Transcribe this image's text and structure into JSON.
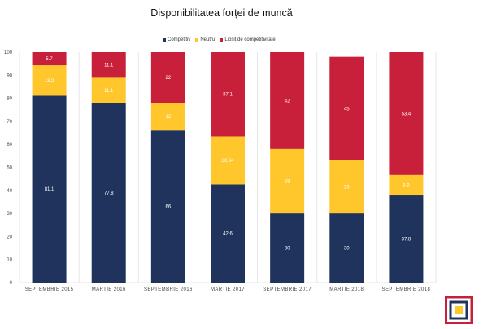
{
  "title": "Disponibilitatea forței de muncă",
  "colors": {
    "competitiv": "#1f335c",
    "neutru": "#ffc72c",
    "lipsit": "#c8203a",
    "grid": "#e6e6e6",
    "axis_text": "#444444",
    "logo_red": "#c8203a",
    "logo_blue": "#1f335c",
    "logo_yellow": "#ffc72c"
  },
  "logo": {
    "icon": "square-bracket-logo-icon"
  },
  "chart_data": {
    "type": "bar",
    "stacked": true,
    "categories": [
      "SEPTEMBRIE 2015",
      "MARTIE 2016",
      "SEPTEMBRIE 2016",
      "MARTIE 2017",
      "SEPTEMBRIE 2017",
      "MARTIE 2018",
      "SEPTEMBRIE 2018"
    ],
    "series": [
      {
        "name": "Competitiv",
        "color": "#1f335c",
        "values": [
          81.1,
          77.8,
          66,
          42.6,
          30,
          30,
          37.8
        ],
        "labels": [
          "81.1",
          "77.8",
          "66",
          "42.6",
          "30",
          "30",
          "37.8"
        ],
        "label_color": "#ffffff"
      },
      {
        "name": "Neutru",
        "color": "#ffc72c",
        "values": [
          13.2,
          11.1,
          12,
          20.84,
          28,
          23,
          8.9
        ],
        "labels": [
          "13.2",
          "11.1",
          "12",
          "20.84",
          "28",
          "23",
          "8.9"
        ],
        "label_color": "#ffffff"
      },
      {
        "name": "Lipsit de competitivitate",
        "color": "#c8203a",
        "values": [
          5.7,
          11.1,
          22,
          37.1,
          42,
          45,
          53.4
        ],
        "labels": [
          "5.7",
          "11.1",
          "22",
          "37.1",
          "42",
          "45",
          "53.4"
        ],
        "label_color": "#ffffff"
      }
    ],
    "yticks": [
      "0",
      "10",
      "20",
      "30",
      "40",
      "50",
      "60",
      "70",
      "80",
      "90",
      "100"
    ],
    "ylim": [
      0,
      100
    ],
    "grid": "vertical-separators",
    "legend_position": "top-center",
    "xlabel": "",
    "ylabel": ""
  }
}
